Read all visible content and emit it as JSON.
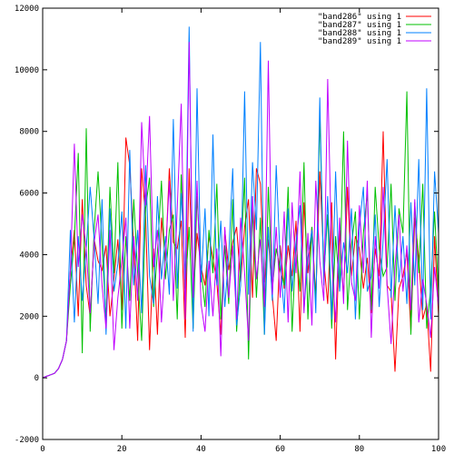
{
  "chart_data": {
    "type": "line",
    "title": "",
    "xlabel": "",
    "ylabel": "",
    "xlim": [
      0,
      100
    ],
    "ylim": [
      -2000,
      12000
    ],
    "x_ticks": [
      0,
      20,
      40,
      60,
      80,
      100
    ],
    "y_ticks": [
      -2000,
      0,
      2000,
      4000,
      6000,
      8000,
      10000,
      12000
    ],
    "x_tick_labels": [
      "0",
      "20",
      "40",
      "60",
      "80",
      "100"
    ],
    "y_tick_labels": [
      "-2000",
      "0",
      "2000",
      "4000",
      "6000",
      "8000",
      "10000",
      "12000"
    ],
    "grid": false,
    "legend_position": "top-right",
    "series": [
      {
        "name": "\"band286\" using 1",
        "color": "#ff0000",
        "values": [
          0,
          50,
          100,
          150,
          300,
          600,
          1200,
          3500,
          4800,
          2000,
          5800,
          3000,
          2000,
          4500,
          3800,
          3500,
          4300,
          2000,
          3200,
          4500,
          2200,
          7800,
          6900,
          4200,
          1200,
          6800,
          5200,
          900,
          4200,
          1400,
          5200,
          3800,
          6800,
          4400,
          4200,
          5100,
          1300,
          6800,
          2600,
          4700,
          3600,
          3000,
          4600,
          3900,
          3100,
          1400,
          4800,
          3500,
          4400,
          4900,
          3100,
          4900,
          5800,
          2600,
          6800,
          6300,
          3100,
          4500,
          2700,
          1200,
          4300,
          2900,
          4300,
          3300,
          5100,
          1500,
          5700,
          3400,
          4900,
          2600,
          6700,
          3800,
          2400,
          5700,
          600,
          4800,
          2600,
          6200,
          3300,
          4600,
          4200,
          2900,
          3900,
          2100,
          4200,
          3300,
          8000,
          3000,
          2800,
          200,
          2900,
          3300,
          4100,
          1500,
          5200,
          3900,
          1900,
          2400,
          200,
          4600,
          2000
        ]
      },
      {
        "name": "\"band287\" using 1",
        "color": "#00c000",
        "values": [
          0,
          50,
          100,
          150,
          300,
          600,
          1200,
          3000,
          4500,
          7300,
          800,
          8100,
          1500,
          4800,
          6700,
          4300,
          1900,
          6200,
          3400,
          7000,
          1600,
          4600,
          2500,
          5800,
          3400,
          1200,
          5500,
          6500,
          2300,
          4100,
          6400,
          3200,
          4800,
          5300,
          1900,
          6600,
          2900,
          4900,
          1600,
          5900,
          3500,
          2300,
          4800,
          3400,
          6300,
          1900,
          4300,
          2400,
          5800,
          1500,
          3800,
          6500,
          600,
          5500,
          2600,
          5200,
          1400,
          6200,
          2900,
          4200,
          3500,
          3000,
          6200,
          1500,
          4400,
          2800,
          7000,
          1900,
          4900,
          2400,
          8500,
          3300,
          5300,
          1600,
          4600,
          2900,
          8000,
          2200,
          4300,
          5400,
          1900,
          4700,
          6000,
          2200,
          6200,
          4200,
          3300,
          3600,
          6300,
          2500,
          5500,
          4700,
          9300,
          1400,
          5700,
          3400,
          6300,
          1600,
          2900,
          5400,
          2700
        ]
      },
      {
        "name": "\"band288\" using 1",
        "color": "#0080ff",
        "values": [
          0,
          50,
          100,
          150,
          300,
          600,
          1200,
          4800,
          1800,
          4600,
          2500,
          4200,
          6200,
          4500,
          2400,
          5800,
          1400,
          5500,
          2800,
          3700,
          5400,
          1600,
          7400,
          3000,
          4800,
          2100,
          6900,
          3300,
          2400,
          5900,
          3200,
          4600,
          2700,
          8400,
          2900,
          6000,
          3200,
          11400,
          1500,
          9400,
          3100,
          5500,
          2000,
          7900,
          3000,
          5100,
          2300,
          4000,
          6800,
          1700,
          3000,
          9300,
          2700,
          7000,
          4800,
          10900,
          1400,
          4900,
          2500,
          6900,
          3800,
          2100,
          5500,
          2800,
          4400,
          5600,
          2200,
          3900,
          4800,
          2100,
          9100,
          3000,
          5900,
          1900,
          6700,
          2800,
          4400,
          3400,
          5500,
          1900,
          4900,
          6200,
          2800,
          3300,
          5300,
          2300,
          4500,
          7100,
          2600,
          5600,
          3100,
          4600,
          2400,
          5700,
          3000,
          7100,
          2200,
          9400,
          1900,
          6700,
          4700
        ]
      },
      {
        "name": "\"band289\" using 1",
        "color": "#c000ff",
        "values": [
          0,
          50,
          100,
          150,
          300,
          600,
          1200,
          3500,
          7600,
          3600,
          5300,
          4200,
          2100,
          4400,
          5300,
          3000,
          1600,
          4800,
          900,
          2600,
          3800,
          5200,
          1600,
          4600,
          2500,
          8300,
          5600,
          8500,
          3600,
          4800,
          1800,
          3900,
          6400,
          2500,
          5500,
          8900,
          1900,
          10900,
          2600,
          6400,
          2400,
          1500,
          3800,
          2000,
          4200,
          700,
          4900,
          2600,
          4300,
          1900,
          5200,
          3400,
          1200,
          5900,
          3200,
          4500,
          2300,
          10300,
          2700,
          4900,
          2600,
          5400,
          1800,
          5700,
          3400,
          6700,
          2100,
          4700,
          1700,
          6400,
          3800,
          2500,
          9700,
          3900,
          1800,
          5200,
          2400,
          7700,
          3100,
          2500,
          5600,
          3400,
          6400,
          1300,
          4600,
          2900,
          6200,
          3000,
          1100,
          3600,
          5300,
          2800,
          4300,
          2200,
          5800,
          1800,
          3200,
          2400,
          1300,
          3600,
          2300
        ]
      }
    ]
  }
}
